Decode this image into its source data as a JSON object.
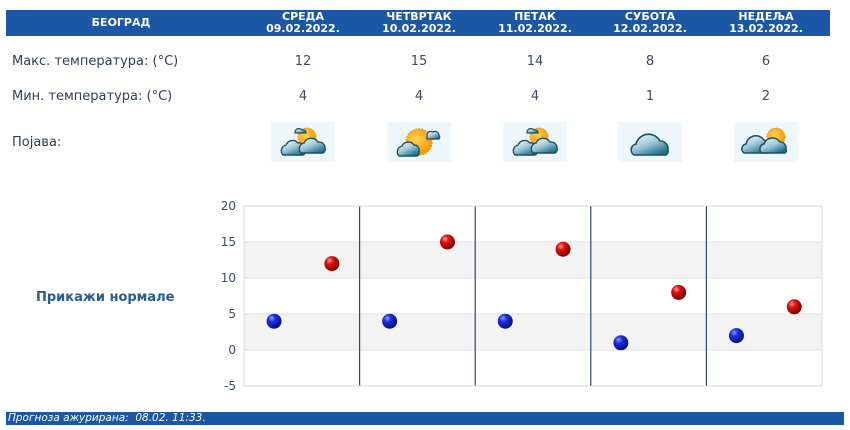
{
  "header": {
    "city": "БЕОГРАД",
    "days": [
      {
        "name": "СРЕДА",
        "date": "09.02.2022."
      },
      {
        "name": "ЧЕТВРТАК",
        "date": "10.02.2022."
      },
      {
        "name": "ПЕТАК",
        "date": "11.02.2022."
      },
      {
        "name": "СУБОТА",
        "date": "12.02.2022."
      },
      {
        "name": "НЕДЕЉА",
        "date": "13.02.2022."
      }
    ]
  },
  "table": {
    "max_label": "Макс. температура: (°C)",
    "min_label": "Мин. температура: (°C)",
    "phenomenon_label": "Појава:",
    "max_values": [
      "12",
      "15",
      "14",
      "8",
      "6"
    ],
    "min_values": [
      "4",
      "4",
      "4",
      "1",
      "2"
    ],
    "icons": [
      "partly-cloudy-icon",
      "mostly-sunny-icon",
      "partly-cloudy-icon",
      "cloudy-icon",
      "cloudy-with-sun-icon"
    ]
  },
  "normals_link": "Прикажи нормале",
  "chart_data": {
    "type": "scatter",
    "title": "",
    "xlabel": "",
    "ylabel": "",
    "categories": [
      "СРЕДА 09.02.2022.",
      "ЧЕТВРТАК 10.02.2022.",
      "ПЕТАК 11.02.2022.",
      "СУБОТА 12.02.2022.",
      "НЕДЕЉА 13.02.2022."
    ],
    "series": [
      {
        "name": "Мин. температура",
        "color": "#0a1fb8",
        "values": [
          4,
          4,
          4,
          1,
          2
        ]
      },
      {
        "name": "Макс. температура",
        "color": "#c80808",
        "values": [
          12,
          15,
          14,
          8,
          6
        ]
      }
    ],
    "yticks": [
      "20",
      "15",
      "10",
      "5",
      "0",
      "-5"
    ],
    "ylim": [
      -5,
      20
    ],
    "grid": true,
    "alternating_bands": true
  },
  "footer": {
    "text": "Прогноза ажурирана:  08.02. 11:33."
  },
  "colors": {
    "header_blue": "#1b57a4",
    "min_dot": "#0a1fb8",
    "max_dot": "#c80808",
    "link": "#2a5d8f"
  }
}
